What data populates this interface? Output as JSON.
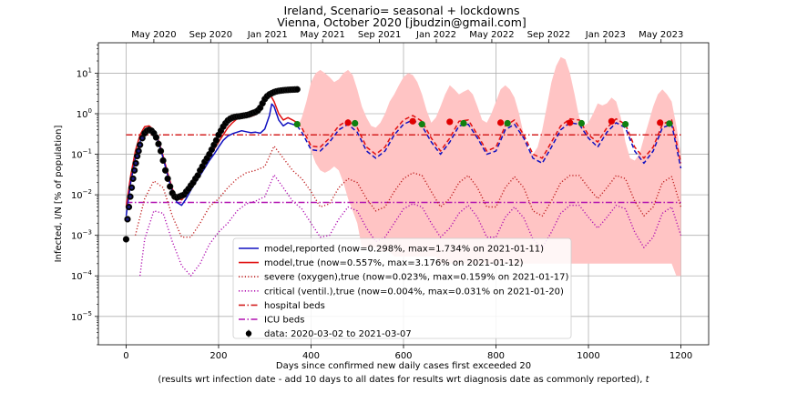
{
  "chart_data": {
    "type": "line",
    "title": "Ireland, Scenario= seasonal + lockdowns",
    "subtitle": "Vienna, October 2020 [jbudzin@gmail.com]",
    "xlabel": "Days since confirmed new daily cases first exceeded 20",
    "xlabel2": "(results wrt infection date - add 10 days to all dates for results wrt diagnosis date as commonly reported), ",
    "xlabel2_var": "t",
    "ylabel": "Infected, I/N [% of population]",
    "xlim": [
      -60,
      1260
    ],
    "ylim_log10": [
      -5.7,
      1.75
    ],
    "yscale": "log",
    "grid": true,
    "legend_position": "lower-center",
    "x_ticks": [
      0,
      200,
      400,
      600,
      800,
      1000,
      1200
    ],
    "x_tick_labels": [
      "0",
      "200",
      "400",
      "600",
      "800",
      "1000",
      "1200"
    ],
    "y_ticks_log10": [
      -5,
      -4,
      -3,
      -2,
      -1,
      0,
      1
    ],
    "y_tick_bases": [
      "10",
      "10",
      "10",
      "10",
      "10",
      "10",
      "10"
    ],
    "y_tick_exps": [
      "−5",
      "−4",
      "−3",
      "−2",
      "−1",
      "0",
      "1"
    ],
    "top_axis": {
      "ticks": [
        60,
        183,
        306,
        425,
        548,
        671,
        791,
        914,
        1037,
        1157
      ],
      "labels": [
        "May 2020",
        "Sep 2020",
        "Jan 2021",
        "May 2021",
        "Sep 2021",
        "Jan 2022",
        "May 2022",
        "Sep 2022",
        "Jan 2023",
        "May 2023"
      ]
    },
    "hospital_beds_pct": 0.3,
    "icu_beds_pct": 0.0065,
    "series": [
      {
        "name": "model,reported (now=0.298%, max=1.734% on 2021-01-11)",
        "color": "#1010c0",
        "style": "solid",
        "x": [
          0,
          10,
          20,
          30,
          40,
          50,
          60,
          70,
          80,
          90,
          100,
          110,
          120,
          130,
          140,
          150,
          160,
          170,
          180,
          190,
          200,
          210,
          220,
          230,
          240,
          250,
          260,
          270,
          280,
          290,
          300,
          310,
          315,
          320,
          330,
          340,
          350,
          360,
          370,
          380,
          400,
          420,
          440,
          460,
          480,
          500,
          520,
          540,
          560,
          580,
          600,
          620,
          640,
          660,
          680,
          700,
          720,
          740,
          760,
          780,
          800,
          820,
          840,
          860,
          880,
          900,
          920,
          940,
          960,
          980,
          1000,
          1020,
          1040,
          1060,
          1080,
          1100,
          1120,
          1140,
          1160,
          1180,
          1200
        ],
        "y": [
          0.003,
          0.02,
          0.08,
          0.2,
          0.35,
          0.45,
          0.38,
          0.2,
          0.08,
          0.03,
          0.012,
          0.0065,
          0.0055,
          0.008,
          0.013,
          0.02,
          0.03,
          0.045,
          0.07,
          0.1,
          0.15,
          0.22,
          0.28,
          0.32,
          0.35,
          0.38,
          0.36,
          0.34,
          0.35,
          0.33,
          0.42,
          0.9,
          1.734,
          1.5,
          0.7,
          0.5,
          0.6,
          0.55,
          0.5,
          0.35,
          0.13,
          0.12,
          0.2,
          0.4,
          0.55,
          0.35,
          0.12,
          0.08,
          0.12,
          0.3,
          0.55,
          0.7,
          0.5,
          0.2,
          0.1,
          0.2,
          0.5,
          0.55,
          0.25,
          0.1,
          0.12,
          0.4,
          0.55,
          0.25,
          0.08,
          0.06,
          0.15,
          0.4,
          0.6,
          0.55,
          0.25,
          0.15,
          0.35,
          0.6,
          0.45,
          0.12,
          0.06,
          0.12,
          0.45,
          0.55,
          0.045
        ]
      },
      {
        "name": "model,true (now=0.557%, max=3.176% on 2021-01-12)",
        "color": "#e01010",
        "style": "solid",
        "x": [
          0,
          10,
          20,
          30,
          40,
          50,
          60,
          70,
          80,
          90,
          100,
          110,
          120,
          130,
          140,
          150,
          160,
          170,
          180,
          190,
          200,
          210,
          220,
          230,
          240,
          250,
          260,
          270,
          280,
          290,
          300,
          310,
          320,
          330,
          340,
          350,
          360,
          370,
          380,
          400,
          420,
          440,
          460,
          480,
          500,
          520,
          540,
          560,
          580,
          600,
          620,
          640,
          660,
          680,
          700,
          720,
          740,
          760,
          780,
          800,
          820,
          840,
          860,
          880,
          900,
          920,
          940,
          960,
          980,
          1000,
          1020,
          1040,
          1060,
          1080,
          1100,
          1120,
          1140,
          1160,
          1180,
          1200
        ],
        "y": [
          0.005,
          0.03,
          0.12,
          0.3,
          0.48,
          0.5,
          0.4,
          0.22,
          0.09,
          0.035,
          0.014,
          0.0085,
          0.0075,
          0.01,
          0.015,
          0.025,
          0.04,
          0.06,
          0.09,
          0.13,
          0.2,
          0.3,
          0.45,
          0.6,
          0.75,
          0.85,
          0.9,
          0.85,
          0.95,
          1.5,
          2.8,
          3.176,
          2.0,
          1.0,
          0.7,
          0.8,
          0.7,
          0.6,
          0.45,
          0.16,
          0.15,
          0.25,
          0.5,
          0.7,
          0.45,
          0.15,
          0.1,
          0.15,
          0.38,
          0.7,
          0.9,
          0.65,
          0.25,
          0.12,
          0.25,
          0.65,
          0.7,
          0.3,
          0.12,
          0.15,
          0.5,
          0.7,
          0.3,
          0.1,
          0.08,
          0.2,
          0.5,
          0.75,
          0.7,
          0.3,
          0.2,
          0.45,
          0.75,
          0.55,
          0.15,
          0.08,
          0.15,
          0.55,
          0.7,
          0.06
        ]
      },
      {
        "name": "severe (oxygen),true (now=0.023%, max=0.159% on 2021-01-17)",
        "color": "#c02020",
        "style": "dotted",
        "x": [
          20,
          40,
          60,
          80,
          100,
          120,
          140,
          160,
          180,
          200,
          220,
          240,
          260,
          280,
          300,
          320,
          340,
          360,
          380,
          400,
          420,
          440,
          460,
          480,
          500,
          520,
          540,
          560,
          580,
          600,
          620,
          640,
          660,
          680,
          700,
          720,
          740,
          760,
          780,
          800,
          820,
          840,
          860,
          880,
          900,
          920,
          940,
          960,
          980,
          1000,
          1020,
          1040,
          1060,
          1080,
          1100,
          1120,
          1140,
          1160,
          1180,
          1200
        ],
        "y": [
          0.001,
          0.008,
          0.022,
          0.015,
          0.003,
          0.0009,
          0.0009,
          0.002,
          0.005,
          0.008,
          0.015,
          0.025,
          0.035,
          0.04,
          0.05,
          0.159,
          0.08,
          0.04,
          0.025,
          0.012,
          0.005,
          0.006,
          0.015,
          0.025,
          0.02,
          0.008,
          0.004,
          0.005,
          0.012,
          0.025,
          0.035,
          0.03,
          0.012,
          0.005,
          0.008,
          0.02,
          0.03,
          0.015,
          0.005,
          0.005,
          0.015,
          0.028,
          0.015,
          0.004,
          0.003,
          0.007,
          0.02,
          0.03,
          0.03,
          0.015,
          0.008,
          0.015,
          0.03,
          0.025,
          0.007,
          0.003,
          0.005,
          0.02,
          0.028,
          0.005
        ]
      },
      {
        "name": "critical (ventil.),true (now=0.004%, max=0.031% on 2021-01-20)",
        "color": "#b010b0",
        "style": "dotted",
        "x": [
          30,
          40,
          60,
          80,
          100,
          120,
          140,
          160,
          180,
          200,
          220,
          240,
          260,
          280,
          300,
          320,
          340,
          360,
          380,
          400,
          420,
          440,
          460,
          480,
          500,
          520,
          540,
          560,
          580,
          600,
          620,
          640,
          660,
          680,
          700,
          720,
          740,
          760,
          780,
          800,
          820,
          840,
          860,
          880,
          900,
          920,
          940,
          960,
          980,
          1000,
          1020,
          1040,
          1060,
          1080,
          1100,
          1120,
          1140,
          1160,
          1180,
          1200
        ],
        "y": [
          0.0001,
          0.0008,
          0.004,
          0.0035,
          0.0007,
          0.00018,
          0.0001,
          0.0002,
          0.0006,
          0.0012,
          0.002,
          0.004,
          0.006,
          0.007,
          0.009,
          0.031,
          0.015,
          0.007,
          0.0045,
          0.002,
          0.0009,
          0.001,
          0.0025,
          0.005,
          0.004,
          0.0015,
          0.0007,
          0.0009,
          0.002,
          0.0045,
          0.006,
          0.005,
          0.002,
          0.0009,
          0.0015,
          0.0035,
          0.0055,
          0.0028,
          0.0009,
          0.0009,
          0.0028,
          0.005,
          0.0027,
          0.0008,
          0.0005,
          0.0012,
          0.0035,
          0.0055,
          0.0055,
          0.0028,
          0.0015,
          0.0028,
          0.0055,
          0.0045,
          0.0012,
          0.0005,
          0.0009,
          0.0035,
          0.005,
          0.001
        ]
      },
      {
        "name": "hospital beds",
        "color": "#d42020",
        "style": "dashdot"
      },
      {
        "name": "ICU beds",
        "color": "#b010b0",
        "style": "dashdot"
      },
      {
        "name": "data: 2020-03-02 to 2021-03-07",
        "color": "#000000",
        "style": "errorbar-points",
        "x": [
          0,
          3,
          6,
          9,
          12,
          15,
          18,
          21,
          24,
          27,
          30,
          35,
          40,
          45,
          50,
          55,
          60,
          65,
          70,
          75,
          80,
          85,
          90,
          95,
          100,
          105,
          110,
          115,
          120,
          125,
          130,
          135,
          140,
          145,
          150,
          155,
          160,
          165,
          170,
          175,
          180,
          185,
          190,
          195,
          200,
          205,
          210,
          215,
          220,
          225,
          230,
          235,
          240,
          245,
          250,
          255,
          260,
          265,
          270,
          275,
          280,
          285,
          290,
          295,
          300,
          305,
          310,
          315,
          320,
          325,
          330,
          335,
          340,
          345,
          350,
          355,
          360,
          365,
          370
        ],
        "y": [
          0.0008,
          0.0025,
          0.005,
          0.009,
          0.015,
          0.025,
          0.04,
          0.06,
          0.09,
          0.12,
          0.17,
          0.25,
          0.33,
          0.38,
          0.4,
          0.38,
          0.33,
          0.26,
          0.18,
          0.12,
          0.07,
          0.04,
          0.025,
          0.016,
          0.011,
          0.009,
          0.0085,
          0.009,
          0.0095,
          0.01,
          0.012,
          0.014,
          0.017,
          0.02,
          0.025,
          0.03,
          0.04,
          0.05,
          0.065,
          0.08,
          0.1,
          0.13,
          0.17,
          0.22,
          0.3,
          0.38,
          0.48,
          0.58,
          0.68,
          0.75,
          0.8,
          0.83,
          0.85,
          0.86,
          0.88,
          0.9,
          0.92,
          0.95,
          1.0,
          1.05,
          1.1,
          1.2,
          1.4,
          1.8,
          2.3,
          2.7,
          3.0,
          3.2,
          3.4,
          3.55,
          3.65,
          3.72,
          3.78,
          3.83,
          3.87,
          3.9,
          3.93,
          3.96,
          3.98
        ]
      }
    ],
    "uncertainty_band": {
      "color": "#ffc4c4",
      "x": [
        375,
        380,
        390,
        400,
        410,
        420,
        430,
        440,
        450,
        460,
        470,
        480,
        490,
        500,
        510,
        520,
        530,
        540,
        550,
        560,
        570,
        580,
        590,
        600,
        610,
        620,
        630,
        640,
        650,
        660,
        670,
        680,
        690,
        700,
        710,
        720,
        730,
        740,
        750,
        760,
        770,
        780,
        790,
        800,
        810,
        820,
        830,
        840,
        850,
        860,
        870,
        880,
        890,
        900,
        910,
        920,
        930,
        940,
        950,
        960,
        970,
        980,
        990,
        1000,
        1010,
        1020,
        1030,
        1040,
        1050,
        1060,
        1070,
        1080,
        1090,
        1100,
        1110,
        1120,
        1130,
        1140,
        1150,
        1160,
        1170,
        1180,
        1190,
        1200
      ],
      "upper": [
        0.6,
        0.8,
        2.0,
        6.0,
        10.0,
        12.0,
        10.0,
        8.0,
        6.0,
        7.0,
        10.0,
        12.0,
        9.0,
        4.0,
        1.5,
        0.8,
        0.5,
        0.45,
        0.6,
        1.0,
        2.0,
        3.0,
        5.0,
        8.0,
        10.0,
        9.0,
        6.0,
        3.0,
        1.2,
        0.6,
        0.8,
        1.5,
        3.0,
        5.0,
        4.0,
        3.0,
        3.5,
        4.0,
        3.0,
        1.5,
        0.7,
        0.6,
        1.0,
        2.0,
        4.0,
        5.0,
        4.0,
        2.5,
        1.0,
        0.3,
        0.12,
        0.1,
        0.15,
        0.4,
        1.5,
        6.0,
        15.0,
        25.0,
        22.0,
        10.0,
        3.0,
        0.8,
        0.5,
        0.6,
        1.0,
        1.8,
        1.6,
        1.8,
        2.5,
        2.0,
        0.8,
        0.2,
        0.08,
        0.07,
        0.1,
        0.25,
        0.6,
        1.5,
        3.0,
        4.0,
        3.0,
        2.0,
        0.5,
        0.1
      ],
      "lower": [
        0.5,
        0.4,
        0.25,
        0.12,
        0.06,
        0.04,
        0.035,
        0.04,
        0.05,
        0.04,
        0.02,
        0.008,
        0.004,
        0.002,
        0.0005,
        0.0005,
        0.0005,
        0.0005,
        0.0004,
        0.0004,
        0.0004,
        0.0003,
        0.0003,
        0.0003,
        0.0003,
        0.0003,
        0.0003,
        0.0003,
        0.0003,
        0.0003,
        0.0003,
        0.0002,
        0.0002,
        0.0002,
        0.0002,
        0.0002,
        0.0002,
        0.0002,
        0.0002,
        0.0002,
        0.0002,
        0.0002,
        0.0002,
        0.0002,
        0.0002,
        0.0002,
        0.0002,
        0.0002,
        0.0002,
        0.0002,
        0.0002,
        0.0002,
        0.0002,
        0.0002,
        0.0002,
        0.0002,
        0.0002,
        0.0002,
        0.0002,
        0.0002,
        0.0002,
        0.0002,
        0.0002,
        0.0002,
        0.0002,
        0.0002,
        0.0002,
        0.0002,
        0.0002,
        0.0002,
        0.0002,
        0.0002,
        0.0002,
        0.0002,
        0.0002,
        0.0002,
        0.0002,
        0.0002,
        0.0002,
        0.0002,
        0.0002,
        0.0002,
        0.0001,
        0.0001
      ]
    },
    "markers": {
      "red": {
        "x": [
          480,
          620,
          700,
          810,
          960,
          1050,
          1155
        ],
        "y": [
          0.6,
          0.65,
          0.63,
          0.6,
          0.6,
          0.65,
          0.6
        ]
      },
      "green": {
        "x": [
          370,
          495,
          640,
          730,
          825,
          985,
          1080,
          1175
        ],
        "y": [
          0.55,
          0.58,
          0.55,
          0.58,
          0.58,
          0.58,
          0.55,
          0.57
        ]
      }
    }
  }
}
